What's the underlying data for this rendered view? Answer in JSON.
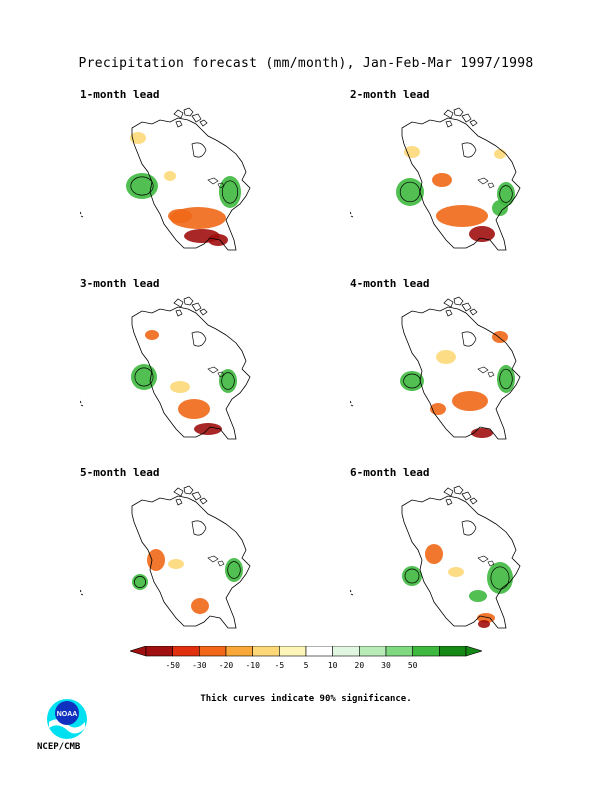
{
  "title": "Precipitation forecast (mm/month), Jan-Feb-Mar 1997/1998",
  "panels": [
    {
      "label": "1-month lead"
    },
    {
      "label": "2-month lead"
    },
    {
      "label": "3-month lead"
    },
    {
      "label": "4-month lead"
    },
    {
      "label": "5-month lead"
    },
    {
      "label": "6-month lead"
    }
  ],
  "legend": {
    "ticks": [
      "-50",
      "-30",
      "-20",
      "-10",
      "-5",
      "5",
      "10",
      "20",
      "30",
      "50"
    ],
    "colors": [
      "#a01010",
      "#e03010",
      "#f06818",
      "#f8a838",
      "#fcd878",
      "#fdf4b8",
      "#ffffff",
      "#e0f6e0",
      "#b8ebb8",
      "#80d880",
      "#3eb83e",
      "#168816"
    ]
  },
  "note": "Thick curves indicate 90% significance.",
  "logo_text": "NOAA",
  "credit": "NCEP/CMB"
}
